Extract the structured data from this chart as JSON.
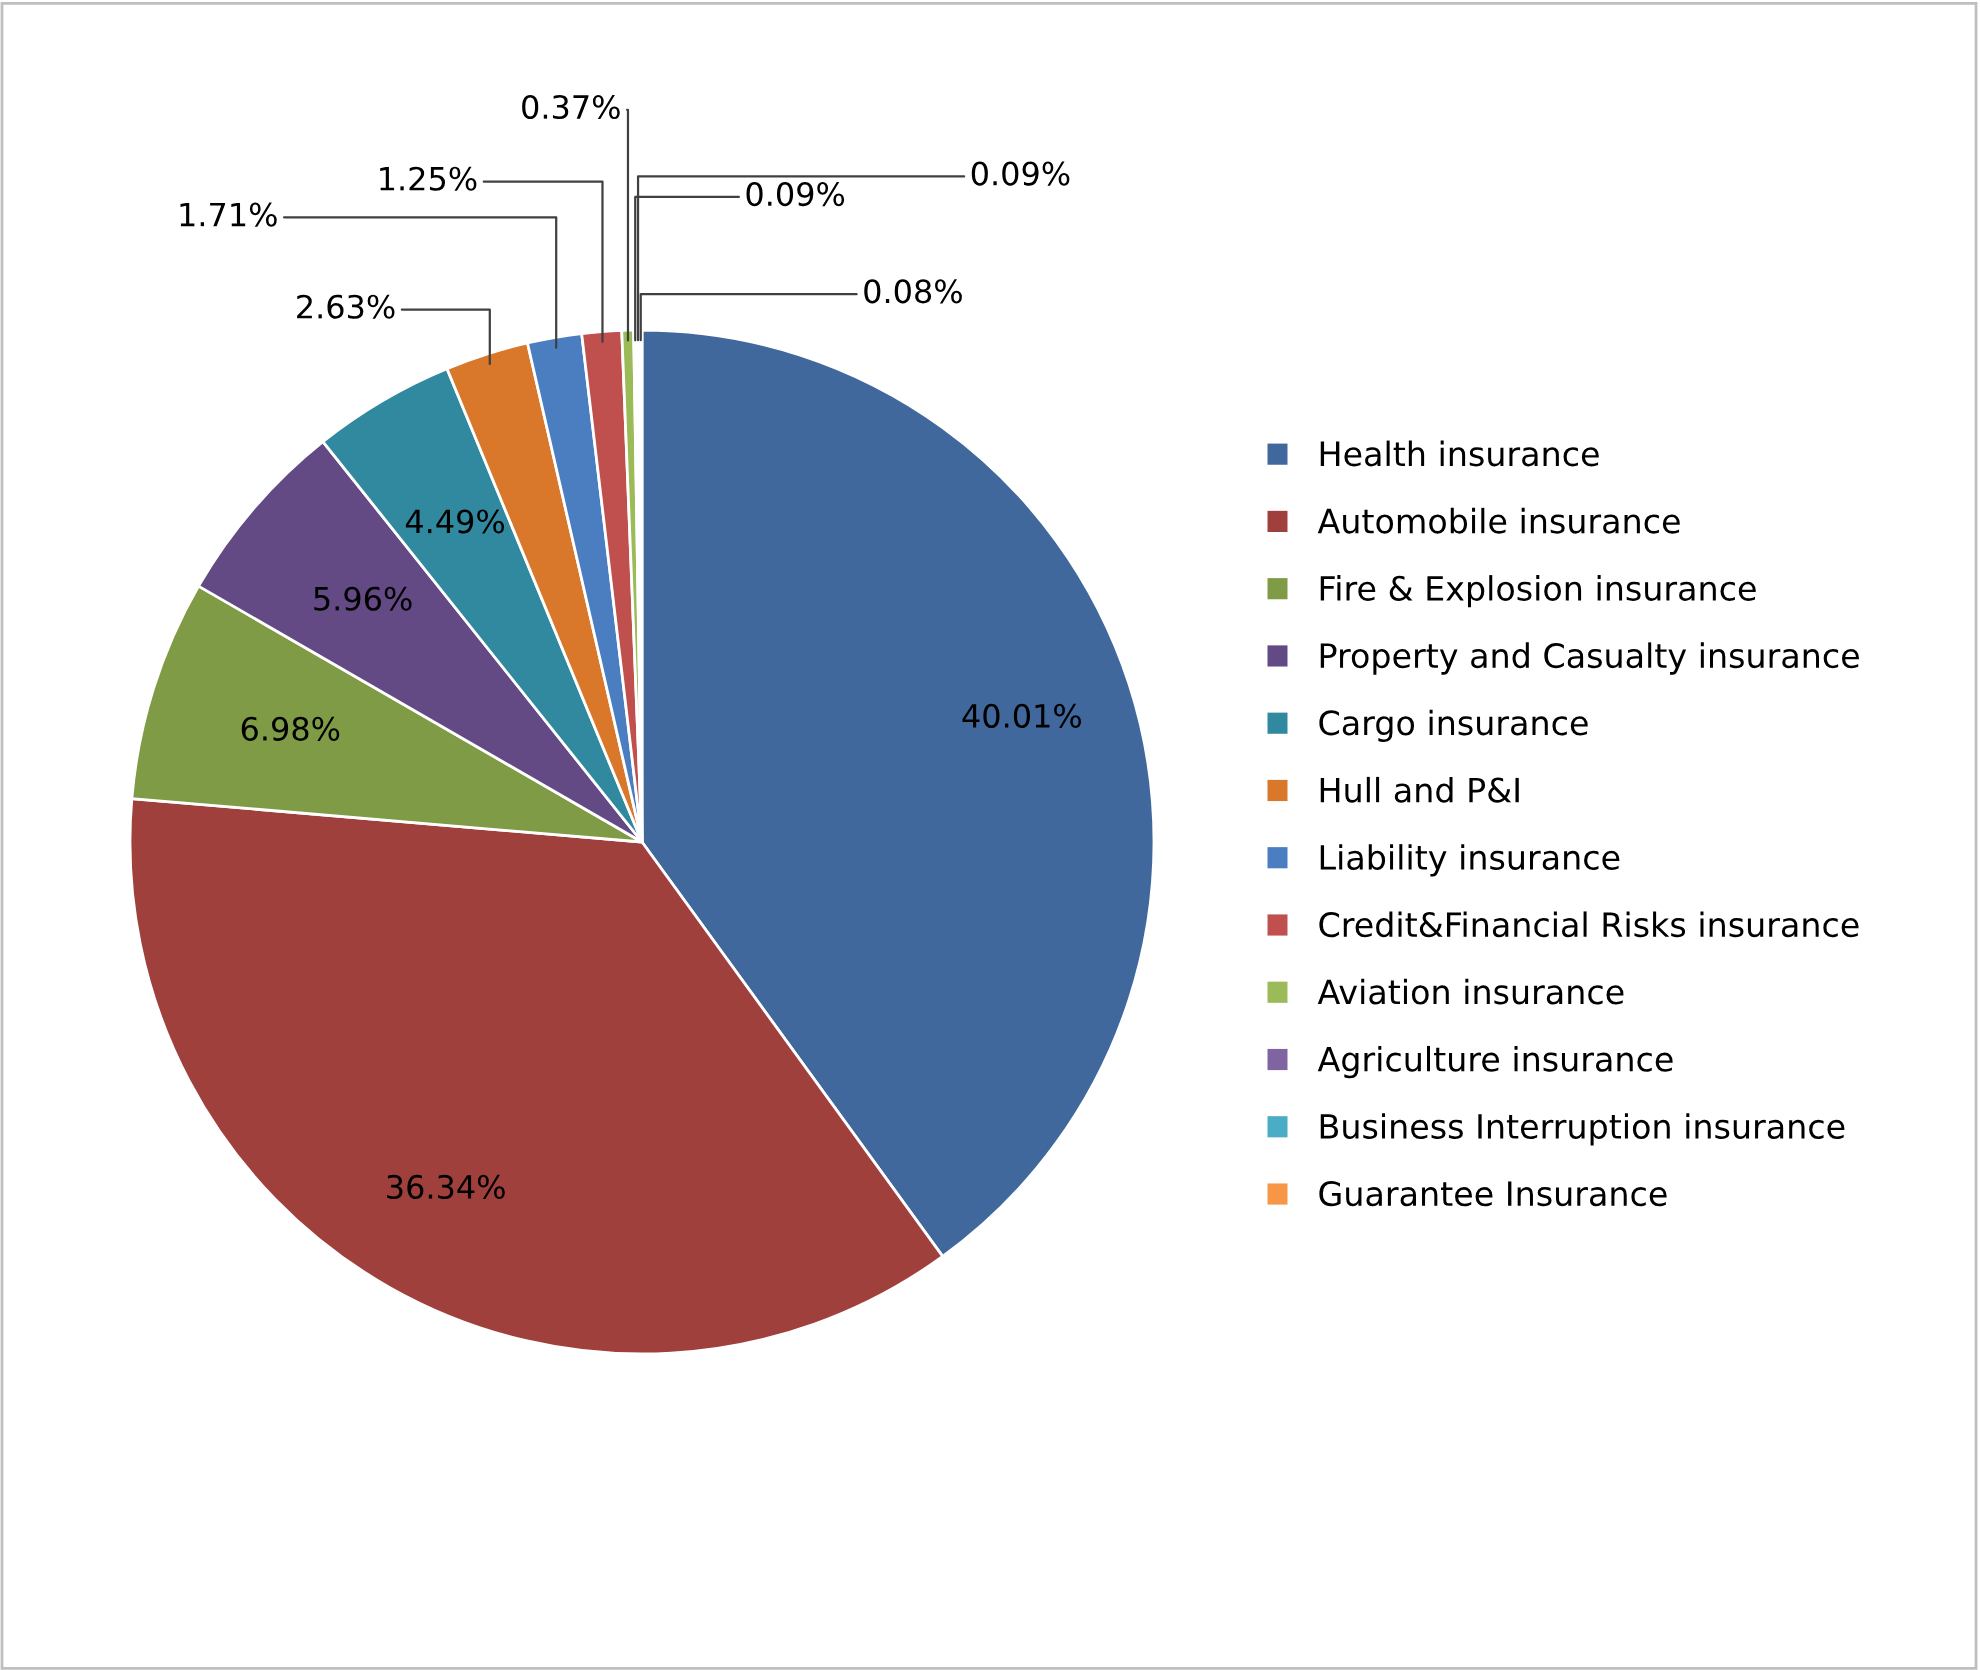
{
  "chart_data": {
    "type": "pie",
    "categories": [
      "Health insurance",
      "Automobile insurance",
      "Fire & Explosion insurance",
      "Property and Casualty insurance",
      "Cargo insurance",
      "Hull and P&I",
      "Liability insurance",
      "Credit&Financial Risks insurance",
      "Aviation insurance",
      "Agriculture insurance",
      "Business Interruption insurance",
      "Guarantee Insurance"
    ],
    "values": [
      40.01,
      36.34,
      6.98,
      5.96,
      4.49,
      2.63,
      1.71,
      1.25,
      0.37,
      0.09,
      0.09,
      0.08
    ],
    "value_labels": [
      "40.01%",
      "36.34%",
      "6.98%",
      "5.96%",
      "4.49%",
      "2.63%",
      "1.71%",
      "1.25%",
      "0.37%",
      "0.09%",
      "0.09%",
      "0.08%"
    ],
    "colors": [
      "#41689c",
      "#a0403d",
      "#7f9b45",
      "#634a84",
      "#31899f",
      "#d9772b",
      "#4a7ec0",
      "#c0504d",
      "#9bbb59",
      "#8064a2",
      "#4bacc6",
      "#f79646"
    ],
    "legend": "right"
  }
}
